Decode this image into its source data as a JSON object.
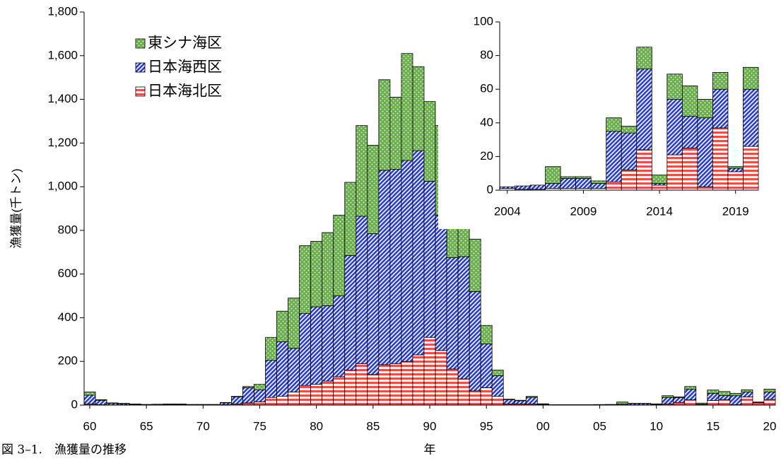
{
  "caption": "図 3–1.　漁獲量の推移",
  "chart_data": [
    {
      "type": "stacked-bar",
      "ylabel": "漁獲量(千トン)",
      "xlabel": "年",
      "legend": "upper left",
      "categories": [
        "60",
        null,
        null,
        null,
        null,
        "65",
        null,
        null,
        null,
        null,
        "70",
        null,
        null,
        null,
        null,
        "75",
        null,
        null,
        null,
        null,
        "80",
        null,
        null,
        null,
        null,
        "85",
        null,
        null,
        null,
        null,
        "90",
        null,
        null,
        null,
        null,
        "95",
        null,
        null,
        null,
        null,
        "00",
        null,
        null,
        null,
        null,
        "05",
        null,
        null,
        null,
        null,
        "10",
        null,
        null,
        null,
        null,
        "15",
        null,
        null,
        null,
        null,
        "20"
      ],
      "series": [
        {
          "name": "日本海北区",
          "color": "#e8504a",
          "pattern": "stripes",
          "values": [
            5,
            2,
            1,
            1,
            1,
            1,
            1,
            1,
            1,
            1,
            1,
            1,
            2,
            5,
            10,
            15,
            35,
            40,
            60,
            90,
            95,
            110,
            130,
            160,
            190,
            140,
            185,
            190,
            200,
            230,
            310,
            250,
            165,
            120,
            65,
            80,
            40,
            5,
            5,
            5,
            3,
            1,
            1,
            1,
            1,
            0.5,
            0.5,
            1,
            1,
            1,
            1,
            5,
            12,
            24,
            3,
            21,
            25,
            2,
            37,
            11,
            26
          ]
        },
        {
          "name": "日本海西区",
          "color": "#2a3fd0",
          "pattern": "diagonal",
          "values": [
            40,
            20,
            7,
            5,
            3,
            2,
            3,
            3,
            3,
            2,
            2,
            2,
            8,
            33,
            70,
            55,
            170,
            250,
            200,
            330,
            355,
            345,
            370,
            525,
            675,
            645,
            890,
            890,
            920,
            935,
            715,
            620,
            510,
            560,
            455,
            200,
            95,
            20,
            15,
            30,
            3,
            1,
            1,
            1,
            1,
            2,
            2.5,
            3,
            6,
            6,
            3,
            30,
            22,
            48,
            1,
            33,
            19,
            41,
            23,
            2,
            34
          ]
        },
        {
          "name": "東シナ海区",
          "color": "#6ab04c",
          "pattern": "dots",
          "values": [
            15,
            3,
            2,
            2,
            1,
            0,
            0,
            1,
            1,
            0,
            0,
            0,
            2,
            2,
            5,
            25,
            105,
            140,
            230,
            310,
            300,
            335,
            370,
            335,
            415,
            405,
            415,
            330,
            490,
            385,
            365,
            410,
            300,
            240,
            240,
            85,
            25,
            2,
            2,
            5,
            0,
            0,
            0,
            0,
            0,
            0,
            0,
            10,
            1,
            1,
            1.5,
            8,
            4,
            13,
            5,
            15,
            18,
            11,
            10,
            1,
            13
          ]
        }
      ],
      "ylim": [
        0,
        1800
      ],
      "yticks": [
        0,
        200,
        400,
        600,
        800,
        {
          "value": 1000,
          "label": "1,000"
        },
        {
          "value": 1200,
          "label": "1,200"
        },
        {
          "value": 1400,
          "label": "1,400"
        },
        {
          "value": 1600,
          "label": "1,600"
        },
        {
          "value": 1800,
          "label": "1,800"
        }
      ]
    },
    {
      "type": "stacked-bar",
      "categories": [
        "2004",
        null,
        null,
        null,
        null,
        "2009",
        null,
        null,
        null,
        null,
        "2014",
        null,
        null,
        null,
        null,
        "2019",
        null
      ],
      "series": [
        {
          "color": "#e8504a",
          "pattern": "stripes",
          "values": [
            1,
            0.5,
            0.5,
            1,
            1,
            1,
            1,
            5,
            12,
            24,
            3,
            21,
            25,
            2,
            37,
            11,
            26
          ]
        },
        {
          "color": "#2a3fd0",
          "pattern": "diagonal",
          "values": [
            1,
            2,
            2.5,
            3,
            6,
            6,
            3,
            30,
            22,
            48,
            1,
            33,
            19,
            41,
            23,
            2,
            34
          ]
        },
        {
          "color": "#6ab04c",
          "pattern": "dots",
          "values": [
            0,
            0,
            0,
            10,
            1,
            1,
            1.5,
            8,
            4,
            13,
            5,
            15,
            18,
            11,
            10,
            1,
            13
          ]
        }
      ],
      "ylim": [
        0,
        100
      ],
      "yticks": [
        0,
        20,
        40,
        60,
        80,
        100
      ]
    }
  ]
}
